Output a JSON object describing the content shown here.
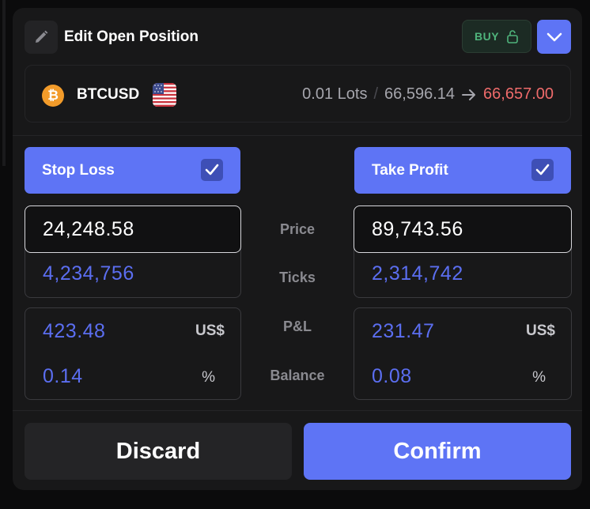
{
  "header": {
    "title": "Edit Open Position",
    "side_label": "BUY"
  },
  "instrument": {
    "symbol": "BTCUSD",
    "coin_glyph": "₿",
    "lots": "0.01 Lots",
    "separator": "/",
    "entry_price": "66,596.14",
    "current_price": "66,657.00"
  },
  "labels": {
    "price": "Price",
    "ticks": "Ticks",
    "pnl": "P&L",
    "balance": "Balance"
  },
  "stop_loss": {
    "label": "Stop Loss",
    "checked": true,
    "price": "24,248.58",
    "ticks": "4,234,756",
    "pnl": "423.48",
    "currency": "US$",
    "balance": "0.14",
    "percent_sign": "%"
  },
  "take_profit": {
    "label": "Take Profit",
    "checked": true,
    "price": "89,743.56",
    "ticks": "2,314,742",
    "pnl": "231.47",
    "currency": "US$",
    "balance": "0.08",
    "percent_sign": "%"
  },
  "actions": {
    "discard": "Discard",
    "confirm": "Confirm"
  },
  "colors": {
    "accent": "#5e74f5",
    "buy_green": "#4fb37b",
    "price_red": "#ef6b6b",
    "value_blue": "#5b6ef0",
    "panel": "#181819"
  },
  "icons": {
    "edit": "pencil-icon",
    "lock": "lock-open-icon",
    "expand": "chevron-down-icon",
    "coin": "bitcoin-icon",
    "flag": "us-flag-icon",
    "arrow": "arrow-right-icon",
    "check": "checkmark-icon"
  }
}
